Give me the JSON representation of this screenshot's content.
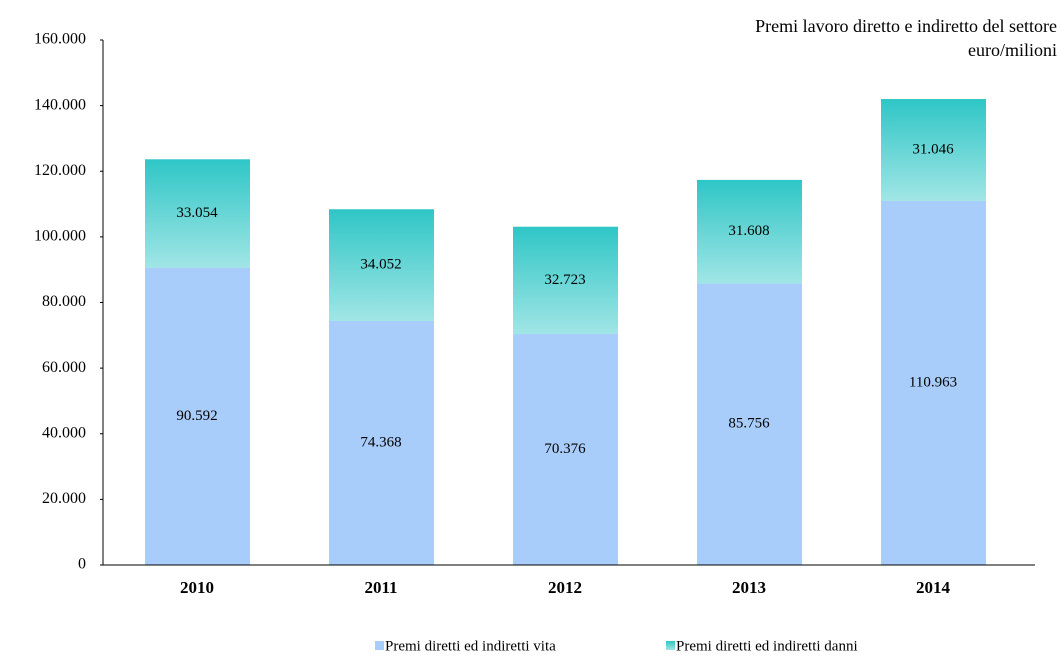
{
  "chart_data": {
    "type": "stacked_bar",
    "title": "Premi lavoro diretto e indiretto del settore",
    "subtitle": "euro/milioni",
    "categories": [
      "2010",
      "2011",
      "2012",
      "2013",
      "2014"
    ],
    "series": [
      {
        "name": "Premi diretti ed indiretti vita",
        "color": "#a8cdfb",
        "values": [
          90592,
          74368,
          70376,
          85756,
          110963
        ],
        "value_labels": [
          "90.592",
          "74.368",
          "70.376",
          "85.756",
          "110.963"
        ]
      },
      {
        "name": "Premi diretti ed indiretti danni",
        "color": "#2fc6c6",
        "values": [
          33054,
          34052,
          32723,
          31608,
          31046
        ],
        "value_labels": [
          "33.054",
          "34.052",
          "32.723",
          "31.608",
          "31.046"
        ]
      }
    ],
    "ylim": [
      0,
      160000
    ],
    "yticks": [
      0,
      {
        "value": 20000,
        "label": "20.000"
      },
      {
        "value": 40000,
        "label": "40.000"
      },
      {
        "value": 60000,
        "label": "60.000"
      },
      {
        "value": 80000,
        "label": "80.000"
      },
      {
        "value": 100000,
        "label": "100.000"
      },
      {
        "value": 120000,
        "label": "120.000"
      },
      {
        "value": 140000,
        "label": "140.000"
      },
      {
        "value": 160000,
        "label": "160.000"
      }
    ],
    "grid": false,
    "legend": "bottom"
  }
}
